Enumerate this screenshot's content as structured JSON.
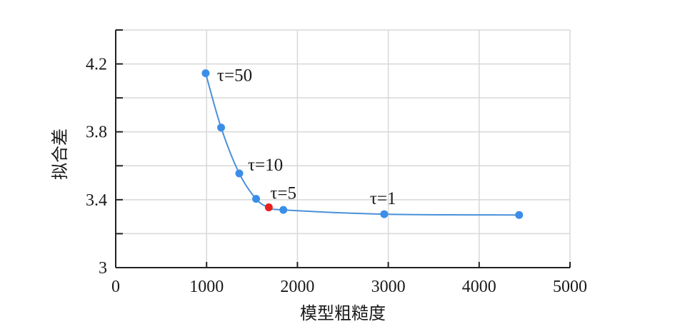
{
  "chart_data": {
    "type": "line",
    "title": "",
    "xlabel": "模型粗糙度",
    "ylabel": "拟合差",
    "xlim": [
      0,
      5000
    ],
    "ylim": [
      3.0,
      4.4
    ],
    "xticks": [
      0,
      1000,
      2000,
      3000,
      4000,
      5000
    ],
    "xtick_labels": [
      "0",
      "1000",
      "2000",
      "3000",
      "4000",
      "5000"
    ],
    "yticks": [
      3.0,
      3.4,
      3.8,
      4.2
    ],
    "ytick_labels": [
      "3",
      "3.4",
      "3.8",
      "4.2"
    ],
    "yminor_ticks": [
      3.2,
      3.6,
      4.0,
      4.4
    ],
    "grid": true,
    "legend": "none",
    "colors": {
      "line": "#4a90d9",
      "point": "#3b8ee8",
      "highlight": "#e8201e",
      "grid": "#d8d8d8",
      "axis": "#222222"
    },
    "series": [
      {
        "x": [
          990,
          1160,
          1360,
          1545,
          1685,
          1845,
          2955,
          4440
        ],
        "y": [
          4.145,
          3.825,
          3.555,
          3.405,
          3.355,
          3.34,
          3.315,
          3.31
        ]
      }
    ],
    "highlight_index": 4,
    "annotations": [
      {
        "text": "τ=50",
        "x": 990,
        "y": 4.145
      },
      {
        "text": "τ=10",
        "x": 1360,
        "y": 3.555
      },
      {
        "text": "τ=5",
        "x": 1685,
        "y": 3.355
      },
      {
        "text": "τ=1",
        "x": 2955,
        "y": 3.315
      }
    ]
  }
}
